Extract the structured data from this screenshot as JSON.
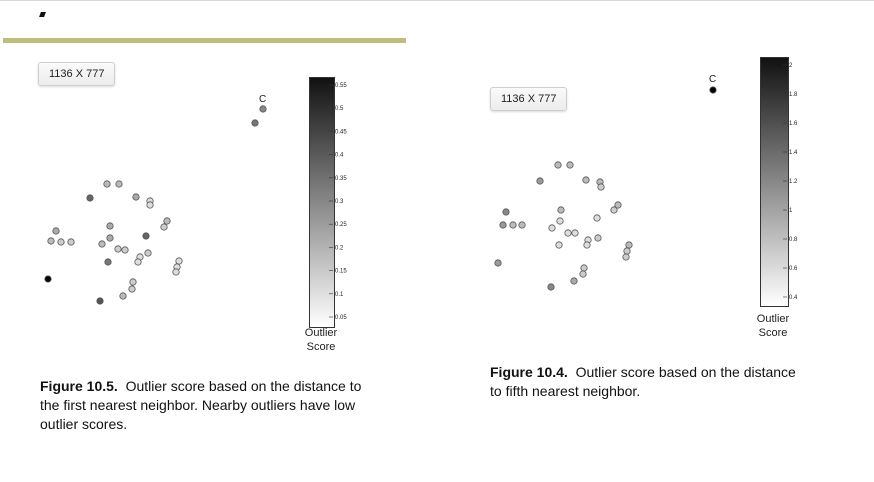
{
  "badges": {
    "left": "1136 X 777",
    "right": "1136 X 777"
  },
  "figure_left": {
    "caption_number": "Figure 10.5.",
    "caption_text": "Outlier score based on the distance to the first nearest neighbor. Nearby outliers have low outlier scores.",
    "point_label": "C",
    "colorbar_title_1": "Outlier",
    "colorbar_title_2": "Score",
    "colorbar_ticks": [
      "0.55",
      "0.5",
      "0.45",
      "0.4",
      "0.35",
      "0.3",
      "0.25",
      "0.2",
      "0.15",
      "0.1",
      "0.05"
    ]
  },
  "figure_right": {
    "caption_number": "Figure 10.4.",
    "caption_text": "Outlier score based on the distance to fifth nearest neighbor.",
    "point_label": "C",
    "colorbar_title_1": "Outlier",
    "colorbar_title_2": "Score",
    "colorbar_ticks": [
      "2",
      "1.8",
      "1.6",
      "1.4",
      "1.2",
      "1",
      "0.8",
      "0.6",
      "0.4"
    ]
  },
  "colors": {
    "accent_bar": "#bdbd80",
    "colorbar_dark": "#111111",
    "colorbar_light": "#ffffff"
  }
}
